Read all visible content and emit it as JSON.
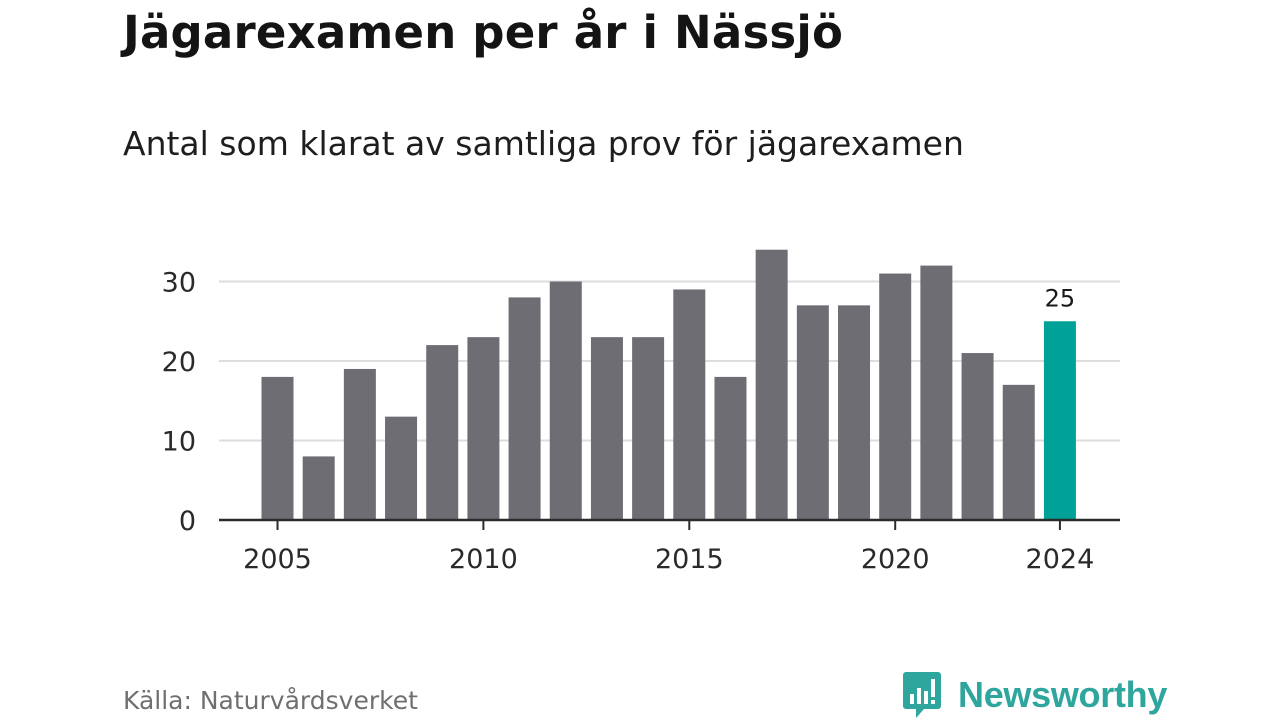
{
  "header": {
    "title": "Jägarexamen per år i Nässjö",
    "subtitle": "Antal som klarat av samtliga prov för jägarexamen"
  },
  "footer": {
    "source": "Källa: Naturvårdsverket",
    "brand": "Newsworthy",
    "brand_icon": "bar-chart-speech-bubble-icon"
  },
  "colors": {
    "bar": "#6e6d73",
    "highlight": "#00a298",
    "grid": "#dddddd",
    "axis": "#2b2b2b",
    "brand": "#2ea69e"
  },
  "chart_data": {
    "type": "bar",
    "title": "Jägarexamen per år i Nässjö",
    "subtitle": "Antal som klarat av samtliga prov för jägarexamen",
    "xlabel": "",
    "ylabel": "",
    "categories": [
      2005,
      2006,
      2007,
      2008,
      2009,
      2010,
      2011,
      2012,
      2013,
      2014,
      2015,
      2016,
      2017,
      2018,
      2019,
      2020,
      2021,
      2022,
      2023,
      2024
    ],
    "values": [
      18,
      8,
      19,
      13,
      22,
      23,
      28,
      30,
      23,
      23,
      29,
      18,
      34,
      27,
      27,
      31,
      32,
      21,
      17,
      25
    ],
    "x_ticks": [
      "2005",
      "2010",
      "2015",
      "2020",
      "2024"
    ],
    "y_ticks": [
      "0",
      "10",
      "20",
      "30"
    ],
    "ylim": [
      0,
      34
    ],
    "grid": true,
    "highlight": {
      "category": 2024,
      "label": "25"
    }
  }
}
